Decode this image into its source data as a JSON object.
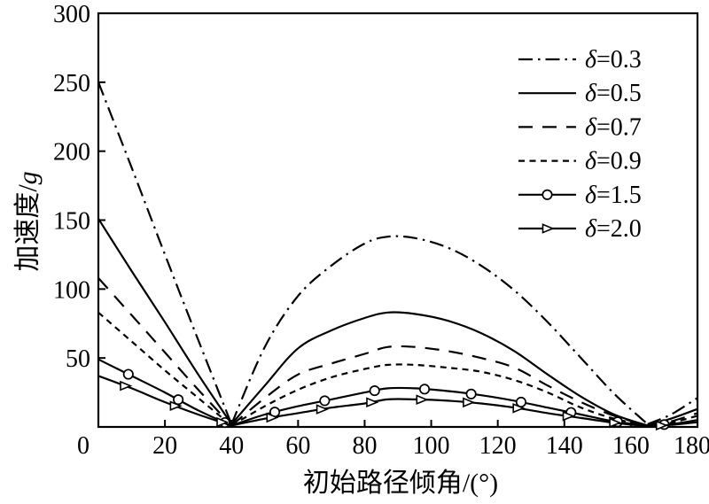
{
  "figure": {
    "background": "#ffffff",
    "ink_color": "#000000"
  },
  "axes": {
    "x": {
      "label": "初始路径倾角/(°)",
      "min": 0,
      "max": 180,
      "ticks": [
        0,
        20,
        40,
        60,
        80,
        100,
        120,
        140,
        160,
        180
      ]
    },
    "y": {
      "label_prefix": "加速度/",
      "label_unit": "g",
      "min": 0,
      "max": 300,
      "ticks": [
        0,
        50,
        100,
        150,
        200,
        250,
        300
      ]
    }
  },
  "chart_data": {
    "type": "line",
    "title": "",
    "xlabel": "初始路径倾角/(°)",
    "ylabel": "加速度/g",
    "xlim": [
      0,
      180
    ],
    "ylim": [
      0,
      300
    ],
    "grid": false,
    "legend_position": "upper-right-inside",
    "x_ticks": [
      0,
      20,
      40,
      60,
      80,
      100,
      120,
      140,
      160,
      180
    ],
    "y_ticks": [
      0,
      50,
      100,
      150,
      200,
      250,
      300
    ],
    "x": [
      0,
      10,
      20,
      30,
      40,
      50,
      60,
      70,
      80,
      87,
      95,
      105,
      115,
      125,
      135,
      145,
      155,
      165,
      172,
      180
    ],
    "series": [
      {
        "name": "δ=0.3",
        "line_style": "dash-dot",
        "marker": "none",
        "values": [
          250,
          188,
          125,
          63,
          2,
          58,
          95,
          117,
          133,
          138,
          137,
          130,
          117,
          99,
          76,
          50,
          24,
          2,
          9,
          21
        ]
      },
      {
        "name": "δ=0.5",
        "line_style": "solid",
        "marker": "none",
        "values": [
          151,
          113,
          76,
          38,
          2,
          30,
          57,
          70,
          79,
          83,
          82,
          77,
          68,
          55,
          38,
          22,
          9,
          1,
          6,
          13
        ]
      },
      {
        "name": "δ=0.7",
        "line_style": "long-dash",
        "marker": "none",
        "values": [
          108,
          81,
          54,
          27,
          1,
          21,
          38,
          46,
          53,
          58,
          58,
          55,
          50,
          43,
          30,
          18,
          8,
          1,
          4,
          10
        ]
      },
      {
        "name": "δ=0.9",
        "line_style": "short-dash",
        "marker": "none",
        "values": [
          83,
          62,
          41,
          21,
          1,
          15,
          27,
          36,
          42,
          45,
          45,
          43,
          40,
          34,
          25,
          14,
          6,
          1,
          3,
          8
        ]
      },
      {
        "name": "δ=1.5",
        "line_style": "solid",
        "marker": "circle",
        "marker_x": [
          9,
          24,
          38,
          53,
          68,
          83,
          98,
          112,
          127,
          142,
          156,
          170
        ],
        "values": [
          49,
          37,
          25,
          12,
          1,
          9,
          15,
          20,
          25,
          28,
          28,
          26,
          23,
          19,
          14,
          9,
          4,
          1,
          2,
          5
        ]
      },
      {
        "name": "δ=2.0",
        "line_style": "solid",
        "marker": "triangle",
        "marker_x": [
          8,
          23,
          37,
          52,
          67,
          82,
          97,
          111,
          126,
          141,
          155,
          169
        ],
        "values": [
          37,
          28,
          18,
          9,
          1,
          6,
          10,
          14,
          17,
          20,
          20,
          19,
          17,
          14,
          10,
          6.5,
          3,
          0.5,
          1.5,
          3.5
        ]
      }
    ]
  }
}
